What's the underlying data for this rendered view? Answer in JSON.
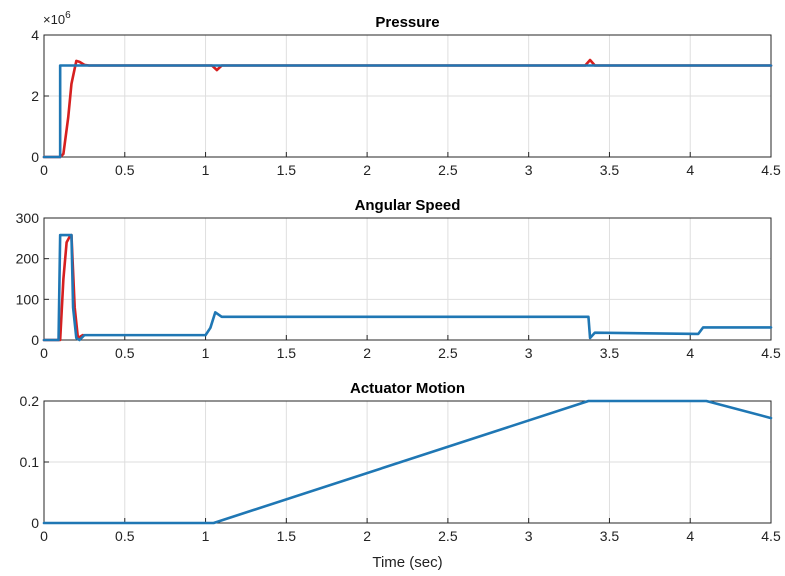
{
  "chart_data": [
    {
      "type": "line",
      "title": "Pressure",
      "xlabel": "",
      "ylabel": "",
      "exponent_label": "×10",
      "exponent_power": "6",
      "xlim": [
        0,
        4.5
      ],
      "ylim": [
        0,
        4000000
      ],
      "xticks": [
        "0",
        "0.5",
        "1",
        "1.5",
        "2",
        "2.5",
        "3",
        "3.5",
        "4",
        "4.5"
      ],
      "yticks": [
        "0",
        "2",
        "4"
      ],
      "ytick_values": [
        0,
        2000000,
        4000000
      ],
      "grid": true,
      "series": [
        {
          "color": "#d62020",
          "x": [
            0,
            0.1,
            0.12,
            0.15,
            0.17,
            0.2,
            0.22,
            0.25,
            0.28,
            1.04,
            1.07,
            1.1,
            3.35,
            3.38,
            3.41,
            4.5
          ],
          "y": [
            0,
            0,
            100000,
            1300000,
            2400000,
            3150000,
            3120000,
            3020000,
            3000000,
            3000000,
            2850000,
            3000000,
            3000000,
            3180000,
            3000000,
            3000000
          ]
        },
        {
          "color": "#1f77b4",
          "x": [
            0,
            0.1,
            0.1,
            4.5
          ],
          "y": [
            0,
            0,
            3000000,
            3000000
          ]
        }
      ]
    },
    {
      "type": "line",
      "title": "Angular Speed",
      "xlabel": "",
      "ylabel": "",
      "xlim": [
        0,
        4.5
      ],
      "ylim": [
        0,
        300
      ],
      "xticks": [
        "0",
        "0.5",
        "1",
        "1.5",
        "2",
        "2.5",
        "3",
        "3.5",
        "4",
        "4.5"
      ],
      "yticks": [
        "0",
        "100",
        "200",
        "300"
      ],
      "ytick_values": [
        0,
        100,
        200,
        300
      ],
      "grid": true,
      "series": [
        {
          "color": "#d62020",
          "x": [
            0,
            0.1,
            0.12,
            0.14,
            0.16,
            0.17,
            0.19,
            0.21,
            0.24
          ],
          "y": [
            0,
            0,
            150,
            240,
            255,
            258,
            80,
            5,
            12
          ]
        },
        {
          "color": "#1f77b4",
          "x": [
            0,
            0.09,
            0.1,
            0.17,
            0.18,
            0.2,
            0.22,
            0.25,
            1.0,
            1.03,
            1.06,
            1.1,
            3.37,
            3.38,
            3.41,
            4.05,
            4.08,
            4.5
          ],
          "y": [
            0,
            0,
            258,
            258,
            80,
            5,
            0,
            12,
            12,
            30,
            68,
            57,
            57,
            5,
            18,
            15,
            31,
            31
          ]
        }
      ]
    },
    {
      "type": "line",
      "title": "Actuator Motion",
      "xlabel": "Time (sec)",
      "ylabel": "",
      "xlim": [
        0,
        4.5
      ],
      "ylim": [
        0,
        0.2
      ],
      "xticks": [
        "0",
        "0.5",
        "1",
        "1.5",
        "2",
        "2.5",
        "3",
        "3.5",
        "4",
        "4.5"
      ],
      "yticks": [
        "0",
        "0.1",
        "0.2"
      ],
      "ytick_values": [
        0,
        0.1,
        0.2
      ],
      "grid": true,
      "series": [
        {
          "color": "#1f77b4",
          "x": [
            0,
            1.05,
            3.37,
            4.1,
            4.5
          ],
          "y": [
            0,
            0,
            0.2,
            0.2,
            0.172
          ]
        }
      ]
    }
  ]
}
